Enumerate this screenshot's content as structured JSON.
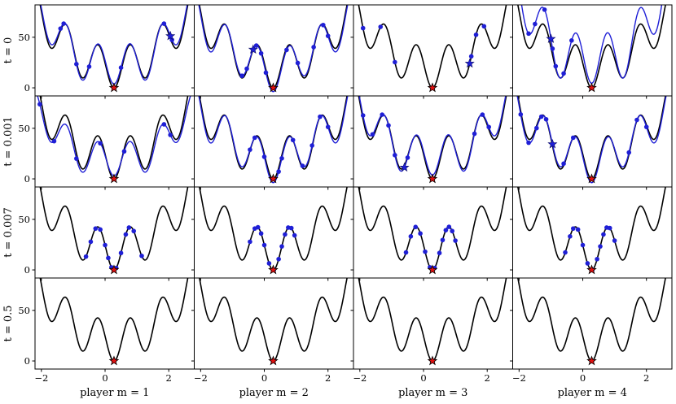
{
  "chart_data": {
    "type": "line",
    "layout": "grid of 4 rows x 4 columns, shared x and y axes",
    "xlim": [
      -2.2,
      2.8
    ],
    "ylim": [
      -8,
      82
    ],
    "x_ticks": [
      -2,
      0,
      2
    ],
    "y_ticks": [
      0,
      50
    ],
    "x_tick_labels": [
      "−2",
      "0",
      "2"
    ],
    "y_tick_labels": [
      "0",
      "50"
    ],
    "column_labels": [
      "player m = 1",
      "player m = 2",
      "player m = 3",
      "player m = 4"
    ],
    "row_labels": [
      "t = 0",
      "t = 0.001",
      "t = 0.007",
      "t = 0.5"
    ],
    "colors": {
      "true_function": "#000000",
      "surrogate": "#1f1fd6",
      "points": "#1f1fd6",
      "minimum_star": "#e01010"
    },
    "global_minimum": {
      "x": 0.28,
      "y": 0
    },
    "panels": [
      {
        "row": 0,
        "col": 0,
        "surrogate": [
          1.0,
          0.1
        ],
        "points_x": [
          -2.05,
          -1.4,
          -1.3,
          -0.9,
          -0.5,
          0.5,
          1.85,
          2.1
        ],
        "blue_star_x": 2.05
      },
      {
        "row": 0,
        "col": 1,
        "surrogate": [
          1.0,
          -0.1
        ],
        "points_x": [
          -0.1,
          -0.55,
          -0.25,
          0.05,
          0.7,
          1.05,
          1.55,
          1.85,
          2.0,
          -0.7
        ],
        "blue_star_x": -0.35
      },
      {
        "row": 0,
        "col": 2,
        "surrogate": null,
        "points_x": [
          -1.9,
          -1.35,
          -0.9,
          1.5,
          1.65,
          1.9
        ],
        "blue_star_x": 1.45
      },
      {
        "row": 0,
        "col": 3,
        "surrogate": [
          1.25,
          0.12
        ],
        "points_x": [
          -1.7,
          -1.5,
          -1.2,
          -0.95,
          -0.85,
          -0.6,
          -0.35
        ],
        "blue_star_x": -1.0
      },
      {
        "row": 1,
        "col": 0,
        "surrogate": [
          0.85,
          0.08
        ],
        "points_x": [
          -2.05,
          -1.6,
          -0.9,
          -0.15,
          0.6,
          1.85,
          2.05
        ],
        "blue_star_x": null
      },
      {
        "row": 1,
        "col": 1,
        "surrogate": [
          1.0,
          -0.1
        ],
        "points_x": [
          -0.45,
          -0.3,
          0.0,
          0.45,
          0.55,
          0.9,
          1.2,
          1.5,
          1.75,
          2.0
        ],
        "blue_star_x": null
      },
      {
        "row": 1,
        "col": 2,
        "surrogate": [
          1.0,
          0.1
        ],
        "points_x": [
          -2.15,
          -1.9,
          -1.6,
          -1.3,
          -1.1,
          -0.9,
          -0.5,
          1.6,
          1.85,
          2.05
        ],
        "blue_star_x": -0.6
      },
      {
        "row": 1,
        "col": 3,
        "surrogate": [
          1.0,
          -0.1
        ],
        "points_x": [
          -1.95,
          -1.7,
          -1.45,
          -1.3,
          -1.15,
          -0.6,
          -0.3,
          1.45,
          1.7,
          2.0
        ],
        "blue_star_x": -0.95
      },
      {
        "row": 2,
        "col": 0,
        "surrogate": null,
        "points_x": [
          -0.6,
          -0.45,
          -0.3,
          -0.15,
          0.0,
          0.1,
          0.2,
          0.35,
          0.5,
          0.65,
          0.75,
          0.9,
          1.15
        ],
        "blue_star_x": null
      },
      {
        "row": 2,
        "col": 1,
        "surrogate": null,
        "points_x": [
          -0.45,
          -0.3,
          -0.2,
          -0.1,
          0.0,
          0.15,
          0.3,
          0.45,
          0.55,
          0.65,
          0.75,
          0.85,
          0.95
        ],
        "blue_star_x": null
      },
      {
        "row": 2,
        "col": 2,
        "surrogate": null,
        "points_x": [
          -0.55,
          -0.4,
          -0.25,
          -0.1,
          0.05,
          0.2,
          0.35,
          0.5,
          0.6,
          0.7,
          0.8,
          0.9,
          1.0
        ],
        "blue_star_x": null
      },
      {
        "row": 2,
        "col": 3,
        "surrogate": null,
        "points_x": [
          -0.55,
          -0.4,
          -0.3,
          -0.15,
          0.0,
          0.15,
          0.3,
          0.45,
          0.55,
          0.65,
          0.75,
          0.85,
          1.0
        ],
        "blue_star_x": null
      },
      {
        "row": 3,
        "col": 0,
        "surrogate": null,
        "points_x": [],
        "blue_star_x": null
      },
      {
        "row": 3,
        "col": 1,
        "surrogate": null,
        "points_x": [],
        "blue_star_x": null
      },
      {
        "row": 3,
        "col": 2,
        "surrogate": null,
        "points_x": [],
        "blue_star_x": null
      },
      {
        "row": 3,
        "col": 3,
        "surrogate": null,
        "points_x": [],
        "blue_star_x": null
      }
    ]
  }
}
